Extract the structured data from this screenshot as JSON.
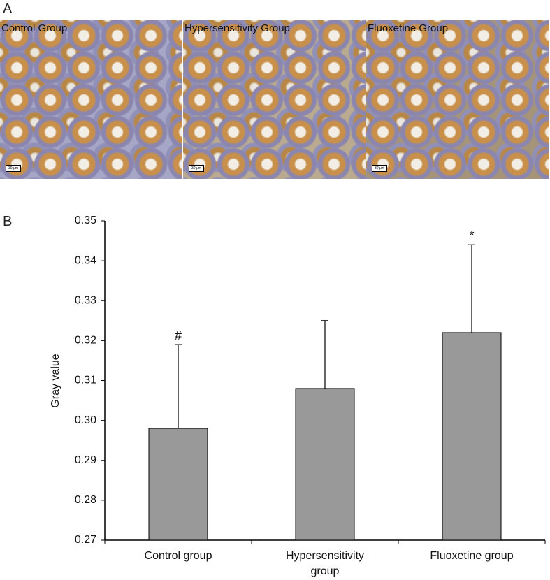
{
  "panel_a": {
    "label": "A",
    "images": [
      {
        "caption": "Control Group",
        "scale_bar": "30 μm"
      },
      {
        "caption": "Hypersensitivity Group",
        "scale_bar": "30 μm"
      },
      {
        "caption": "Fluoxetine Group",
        "scale_bar": "30 μm"
      }
    ]
  },
  "panel_b": {
    "label": "B"
  },
  "chart_data": {
    "type": "bar",
    "ylabel": "Gray value",
    "categories": [
      "Control group",
      "Hypersensitivity group",
      "Fluoxetine group"
    ],
    "series": [
      {
        "color": "#999999",
        "values": [
          0.298,
          0.308,
          0.322
        ],
        "errors": [
          0.021,
          0.017,
          0.022
        ],
        "markers": [
          "#",
          null,
          "*"
        ]
      }
    ],
    "ylim": [
      0.27,
      0.35
    ],
    "yticks": [
      0.27,
      0.28,
      0.29,
      {
        "value": 0.3,
        "label": "0.30"
      },
      0.31,
      0.32,
      0.33,
      0.34,
      0.35
    ]
  }
}
